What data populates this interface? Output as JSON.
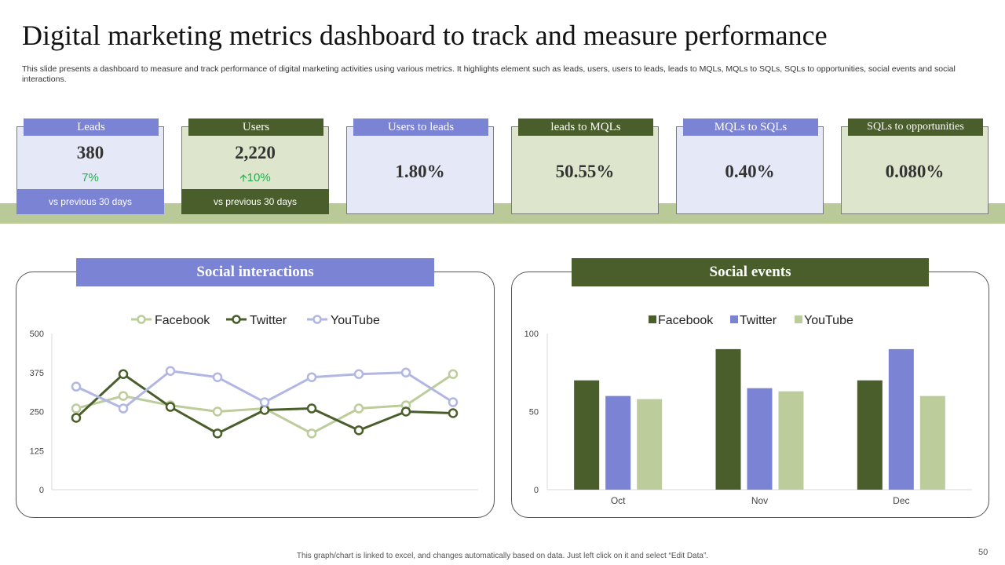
{
  "title": "Digital marketing metrics dashboard to track and measure performance",
  "subtitle": "This slide presents a dashboard to measure and track performance of digital marketing activities using various metrics. It highlights element such as leads, users, users to leads, leads to MQLs, MQLs to SQLs, SQLs to opportunities, social events and social interactions.",
  "colors": {
    "purple": "#7b83d4",
    "dark_green": "#4a5e2c",
    "light_purple": "#e5e8f7",
    "light_green": "#dde6cc",
    "band": "#b9ca98",
    "sage": "#bccd9b",
    "lavender": "#b2b6e2"
  },
  "kpis": [
    {
      "label": "Leads",
      "value": "380",
      "change": "7%",
      "footer": "vs previous  30 days"
    },
    {
      "label": "Users",
      "value": "2,220",
      "change": "10%",
      "change_icon": "up-arrow-icon",
      "footer": "vs previous  30 days"
    },
    {
      "label": "Users to leads",
      "value": "1.80%"
    },
    {
      "label": "leads to MQLs",
      "value": "50.55%"
    },
    {
      "label": "MQLs to SQLs",
      "value": "0.40%"
    },
    {
      "label": "SQLs to opportunities",
      "value": "0.080%"
    }
  ],
  "panels": {
    "left_title": "Social interactions",
    "right_title": "Social events"
  },
  "chart_data": [
    {
      "type": "line",
      "title": "Social interactions",
      "x": [
        1,
        2,
        3,
        4,
        5,
        6,
        7,
        8,
        9
      ],
      "ylim": [
        0,
        500
      ],
      "yticks": [
        "0",
        "125",
        "250",
        "375",
        "500"
      ],
      "legend": "top",
      "series": [
        {
          "name": "Facebook",
          "color": "#bccd9b",
          "values": [
            260,
            300,
            270,
            250,
            260,
            180,
            260,
            270,
            370
          ]
        },
        {
          "name": "Twitter",
          "color": "#4a5e2c",
          "values": [
            230,
            370,
            265,
            180,
            255,
            260,
            190,
            250,
            245
          ]
        },
        {
          "name": "YouTube",
          "color": "#b2b6e2",
          "values": [
            330,
            260,
            380,
            360,
            280,
            360,
            370,
            375,
            280
          ]
        }
      ]
    },
    {
      "type": "bar",
      "title": "Social events",
      "categories": [
        "Oct",
        "Nov",
        "Dec"
      ],
      "ylim": [
        0,
        100
      ],
      "yticks": [
        "0",
        "50",
        "100"
      ],
      "legend": "top",
      "series": [
        {
          "name": "Facebook",
          "color": "#4a5e2c",
          "values": [
            70,
            90,
            70
          ]
        },
        {
          "name": "Twitter",
          "color": "#7b83d4",
          "values": [
            60,
            65,
            90
          ]
        },
        {
          "name": "YouTube",
          "color": "#bccd9b",
          "values": [
            58,
            63,
            60
          ]
        }
      ]
    }
  ],
  "footer": "This graph/chart is linked to excel,  and changes automatically based on data. Just left click on it and select “Edit Data”.",
  "page_number": "50"
}
